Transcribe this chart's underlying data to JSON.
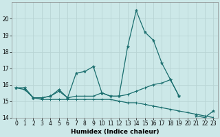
{
  "title": "",
  "xlabel": "Humidex (Indice chaleur)",
  "ylabel": "",
  "xlim": [
    -0.5,
    23.5
  ],
  "ylim": [
    14,
    21
  ],
  "yticks": [
    14,
    15,
    16,
    17,
    18,
    19,
    20
  ],
  "xticks": [
    0,
    1,
    2,
    3,
    4,
    5,
    6,
    7,
    8,
    9,
    10,
    11,
    12,
    13,
    14,
    15,
    16,
    17,
    18,
    19,
    20,
    21,
    22,
    23
  ],
  "bg_color": "#cce8e8",
  "grid_color": "#b8d4d4",
  "line_color": "#1a6e6e",
  "line1": [
    15.8,
    15.8,
    15.2,
    15.2,
    15.3,
    15.7,
    15.2,
    16.7,
    16.8,
    17.1,
    15.5,
    15.3,
    15.3,
    18.3,
    20.5,
    19.2,
    18.7,
    17.3,
    16.3,
    15.3,
    null,
    14.1,
    14.0,
    14.4
  ],
  "line2": [
    15.8,
    15.8,
    15.2,
    15.2,
    15.3,
    15.6,
    15.2,
    15.3,
    15.3,
    15.3,
    15.5,
    15.3,
    15.3,
    15.4,
    15.6,
    15.8,
    16.0,
    16.1,
    16.3,
    15.3,
    null,
    null,
    null,
    null
  ],
  "line3": [
    15.8,
    15.7,
    15.2,
    15.1,
    15.1,
    15.1,
    15.1,
    15.1,
    15.1,
    15.1,
    15.1,
    15.1,
    15.0,
    14.9,
    14.9,
    14.8,
    14.7,
    14.6,
    14.5,
    14.4,
    14.3,
    14.2,
    14.1,
    14.0
  ],
  "marker_size": 2.5,
  "linewidth": 0.9,
  "tick_fontsize": 5.5,
  "xlabel_fontsize": 6.5
}
